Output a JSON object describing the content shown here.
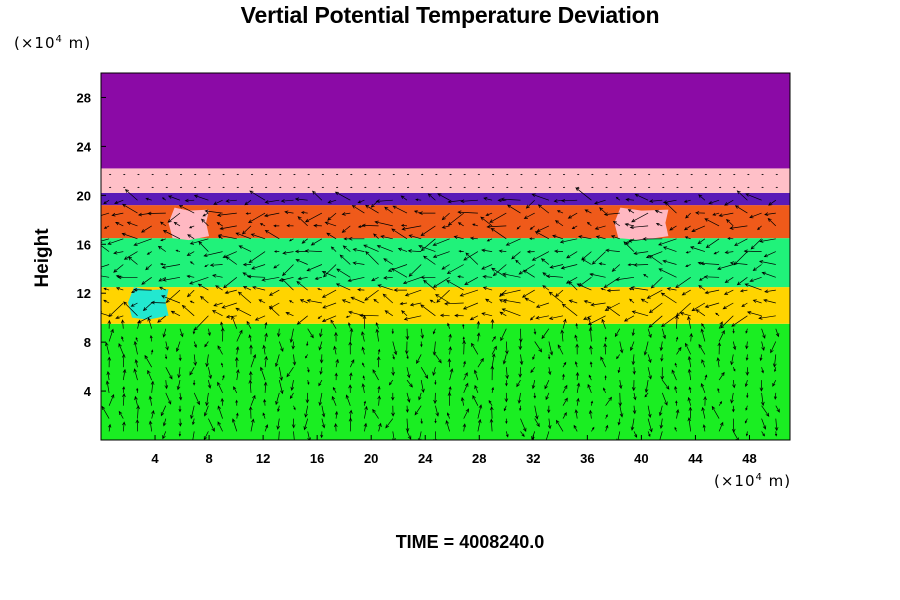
{
  "title": "Vertial Potential Temperature Deviation",
  "time_label": "TIME = 4008240.0",
  "chart_data": {
    "type": "heatmap",
    "title": "Vertial Potential Temperature Deviation",
    "xlabel": "",
    "ylabel": "Height",
    "x_unit": "(×10⁴ m)",
    "y_unit": "(×10⁴ m)",
    "x_unit_base": "(×10",
    "x_unit_exp": "4",
    "x_unit_tail": " m)",
    "y_unit_base": "(×10",
    "y_unit_exp": "4",
    "y_unit_tail": " m)",
    "xlim": [
      0,
      51
    ],
    "ylim": [
      0,
      30
    ],
    "xticks": [
      4,
      8,
      12,
      16,
      20,
      24,
      28,
      32,
      36,
      40,
      44,
      48
    ],
    "yticks": [
      4,
      8,
      12,
      16,
      20,
      24,
      28
    ],
    "overlay": "velocity vector arrows",
    "layers": [
      {
        "from": 0,
        "to": 9.5,
        "color": "#1aee22"
      },
      {
        "from": 9.5,
        "to": 12.5,
        "color": "#ffd400"
      },
      {
        "from": 12.5,
        "to": 16.5,
        "color": "#20f27a"
      },
      {
        "from": 16.5,
        "to": 19.2,
        "color": "#ef5a1a"
      },
      {
        "from": 19.2,
        "to": 20.2,
        "color": "#5a1ab8"
      },
      {
        "from": 20.2,
        "to": 22.2,
        "color": "#ffc0c8"
      },
      {
        "from": 22.2,
        "to": 30,
        "color": "#8b0aa6"
      }
    ],
    "features": [
      {
        "kind": "pink-patch",
        "x": [
          5,
          8
        ],
        "y": [
          16.5,
          19
        ],
        "color": "#ffb8c2"
      },
      {
        "kind": "pink-patch",
        "x": [
          38,
          42
        ],
        "y": [
          16.5,
          19
        ],
        "color": "#ffb8c2"
      },
      {
        "kind": "cyan-patch",
        "x": [
          2,
          5
        ],
        "y": [
          10,
          12.5
        ],
        "color": "#22e8d0"
      }
    ]
  }
}
